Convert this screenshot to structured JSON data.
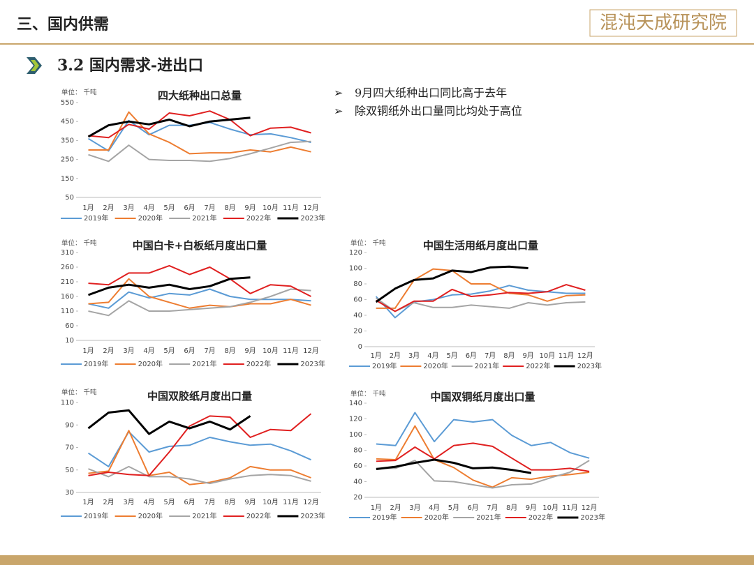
{
  "header": {
    "title": "三、国内供需",
    "logo": "混沌天成研究院",
    "section": "3.2 国内需求-进出口"
  },
  "bullets": [
    "9月四大纸种出口同比高于去年",
    "除双铜纸外出口量同比均处于高位"
  ],
  "chart_data": [
    {
      "type": "line",
      "title": "四大纸种出口总量",
      "y_label": "单位： 千吨",
      "categories": [
        "1月",
        "2月",
        "3月",
        "4月",
        "5月",
        "6月",
        "7月",
        "8月",
        "9月",
        "10月",
        "11月",
        "12月"
      ],
      "ylim": [
        50,
        550
      ],
      "yticks": [
        50,
        150,
        250,
        350,
        450,
        550
      ],
      "series": [
        {
          "name": "2019年",
          "color": "#5b9bd5",
          "values": [
            360,
            295,
            455,
            380,
            430,
            430,
            445,
            410,
            380,
            385,
            365,
            340
          ]
        },
        {
          "name": "2020年",
          "color": "#ed7d31",
          "values": [
            300,
            300,
            500,
            385,
            340,
            280,
            285,
            285,
            300,
            290,
            315,
            290
          ]
        },
        {
          "name": "2021年",
          "color": "#a5a5a5",
          "values": [
            275,
            240,
            325,
            250,
            245,
            245,
            240,
            255,
            280,
            310,
            340,
            345
          ]
        },
        {
          "name": "2022年",
          "color": "#e02020",
          "values": [
            375,
            365,
            435,
            410,
            495,
            480,
            505,
            460,
            375,
            415,
            420,
            390
          ]
        },
        {
          "name": "2023年",
          "color": "#000000",
          "values": [
            370,
            430,
            450,
            435,
            460,
            425,
            450,
            460,
            470,
            null,
            null,
            null
          ]
        }
      ]
    },
    {
      "type": "line",
      "title": "中国白卡+白板纸月度出口量",
      "y_label": "单位： 千吨",
      "categories": [
        "1月",
        "2月",
        "3月",
        "4月",
        "5月",
        "6月",
        "7月",
        "8月",
        "9月",
        "10月",
        "11月",
        "12月"
      ],
      "ylim": [
        10,
        310
      ],
      "yticks": [
        10,
        60,
        110,
        160,
        210,
        260,
        310
      ],
      "series": [
        {
          "name": "2019年",
          "color": "#5b9bd5",
          "values": [
            135,
            120,
            175,
            155,
            170,
            165,
            185,
            160,
            150,
            150,
            150,
            145
          ]
        },
        {
          "name": "2020年",
          "color": "#ed7d31",
          "values": [
            135,
            140,
            220,
            160,
            140,
            120,
            130,
            125,
            135,
            135,
            150,
            130
          ]
        },
        {
          "name": "2021年",
          "color": "#a5a5a5",
          "values": [
            110,
            95,
            145,
            110,
            110,
            115,
            120,
            125,
            140,
            160,
            185,
            180
          ]
        },
        {
          "name": "2022年",
          "color": "#e02020",
          "values": [
            205,
            200,
            240,
            240,
            265,
            235,
            260,
            220,
            170,
            200,
            195,
            160
          ]
        },
        {
          "name": "2023年",
          "color": "#000000",
          "values": [
            165,
            190,
            200,
            190,
            200,
            185,
            195,
            220,
            225,
            null,
            null,
            null
          ]
        }
      ]
    },
    {
      "type": "line",
      "title": "中国生活用纸月度出口量",
      "y_label": "单位： 千吨",
      "categories": [
        "1月",
        "2月",
        "3月",
        "4月",
        "5月",
        "6月",
        "7月",
        "8月",
        "9月",
        "10月",
        "11月",
        "12月"
      ],
      "ylim": [
        0,
        120
      ],
      "yticks": [
        0,
        20,
        40,
        60,
        80,
        100,
        120
      ],
      "series": [
        {
          "name": "2019年",
          "color": "#5b9bd5",
          "values": [
            64,
            37,
            57,
            60,
            66,
            67,
            71,
            78,
            72,
            70,
            68,
            68
          ]
        },
        {
          "name": "2020年",
          "color": "#ed7d31",
          "values": [
            49,
            49,
            85,
            99,
            97,
            80,
            80,
            68,
            66,
            58,
            65,
            66
          ]
        },
        {
          "name": "2021年",
          "color": "#a5a5a5",
          "values": [
            62,
            45,
            56,
            50,
            50,
            53,
            51,
            49,
            56,
            53,
            56,
            57
          ]
        },
        {
          "name": "2022年",
          "color": "#e02020",
          "values": [
            59,
            45,
            58,
            58,
            73,
            64,
            66,
            69,
            68,
            70,
            79,
            72
          ]
        },
        {
          "name": "2023年",
          "color": "#000000",
          "values": [
            57,
            74,
            85,
            87,
            97,
            95,
            101,
            102,
            100,
            null,
            null,
            null
          ]
        }
      ]
    },
    {
      "type": "line",
      "title": "中国双胶纸月度出口量",
      "y_label": "单位： 千吨",
      "categories": [
        "1月",
        "2月",
        "3月",
        "4月",
        "5月",
        "6月",
        "7月",
        "8月",
        "9月",
        "10月",
        "11月",
        "12月"
      ],
      "ylim": [
        30,
        110
      ],
      "yticks": [
        30,
        50,
        70,
        90,
        110
      ],
      "series": [
        {
          "name": "2019年",
          "color": "#5b9bd5",
          "values": [
            65,
            53,
            84,
            66,
            71,
            72,
            79,
            75,
            72,
            73,
            67,
            59
          ]
        },
        {
          "name": "2020年",
          "color": "#ed7d31",
          "values": [
            47,
            49,
            85,
            45,
            48,
            37,
            39,
            43,
            53,
            50,
            50,
            43
          ]
        },
        {
          "name": "2021年",
          "color": "#a5a5a5",
          "values": [
            51,
            44,
            53,
            44,
            44,
            42,
            38,
            42,
            45,
            46,
            45,
            40
          ]
        },
        {
          "name": "2022年",
          "color": "#e02020",
          "values": [
            45,
            48,
            46,
            45,
            66,
            89,
            98,
            97,
            79,
            86,
            85,
            100
          ]
        },
        {
          "name": "2023年",
          "color": "#000000",
          "values": [
            87,
            101,
            103,
            82,
            93,
            87,
            93,
            86,
            98,
            null,
            null,
            null
          ]
        }
      ]
    },
    {
      "type": "line",
      "title": "中国双铜纸月度出口量",
      "y_label": "单位： 千吨",
      "categories": [
        "1月",
        "2月",
        "3月",
        "4月",
        "5月",
        "6月",
        "7月",
        "8月",
        "9月",
        "10月",
        "11月",
        "12月"
      ],
      "ylim": [
        20,
        140
      ],
      "yticks": [
        20,
        40,
        60,
        80,
        100,
        120,
        140
      ],
      "series": [
        {
          "name": "2019年",
          "color": "#5b9bd5",
          "values": [
            88,
            86,
            128,
            91,
            119,
            116,
            119,
            99,
            86,
            90,
            77,
            70
          ]
        },
        {
          "name": "2020年",
          "color": "#ed7d31",
          "values": [
            69,
            68,
            111,
            68,
            58,
            42,
            33,
            45,
            43,
            47,
            49,
            52
          ]
        },
        {
          "name": "2021年",
          "color": "#a5a5a5",
          "values": [
            57,
            57,
            67,
            41,
            40,
            36,
            32,
            36,
            37,
            45,
            52,
            67
          ]
        },
        {
          "name": "2022年",
          "color": "#e02020",
          "values": [
            66,
            67,
            84,
            69,
            86,
            89,
            85,
            70,
            55,
            55,
            57,
            53
          ]
        },
        {
          "name": "2023年",
          "color": "#000000",
          "values": [
            56,
            59,
            64,
            68,
            64,
            57,
            58,
            55,
            51,
            null,
            null,
            null
          ]
        }
      ]
    }
  ]
}
